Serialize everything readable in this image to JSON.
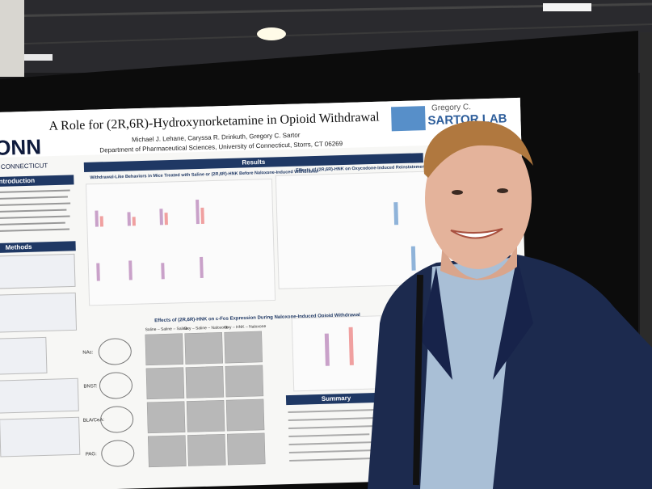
{
  "poster": {
    "logo": {
      "name": "ONN",
      "subtitle": "F CONNECTICUT"
    },
    "title": "A Role for (2R,6R)-Hydroxynorketamine in Opioid Withdrawal",
    "authors": "Michael J. Lehane, Caryssa R. Drinkuth, Gregory C. Sartor",
    "affiliation": "Department of Pharmaceutical Sciences, University of Connecticut, Storrs, CT 06269",
    "lab": {
      "person": "Gregory C.",
      "name": "SARTOR LAB"
    },
    "sections": {
      "introduction": "Introduction",
      "methods": "Methods",
      "results": "Results",
      "summary": "Summary"
    },
    "figure_titles": [
      "Withdrawal-Like Behaviors in Mice Treated with Saline or (2R,6R)-HNK Before Naloxone-Induced Withdrawal",
      "Effects of (2R,6R)-HNK on Oxycodone-Induced Reinstatement &",
      "Effects of (2R,6R)-HNK on c-Fos Expression During Naloxone-Induced Opioid Withdrawal"
    ],
    "columns": [
      "Saline – Saline – Saline",
      "Oxy – Saline – Naloxone",
      "Oxy – HNK – Naloxone"
    ],
    "regions": [
      "NAc:",
      "BNST:",
      "BLA/CeA:",
      "PAG:"
    ]
  }
}
